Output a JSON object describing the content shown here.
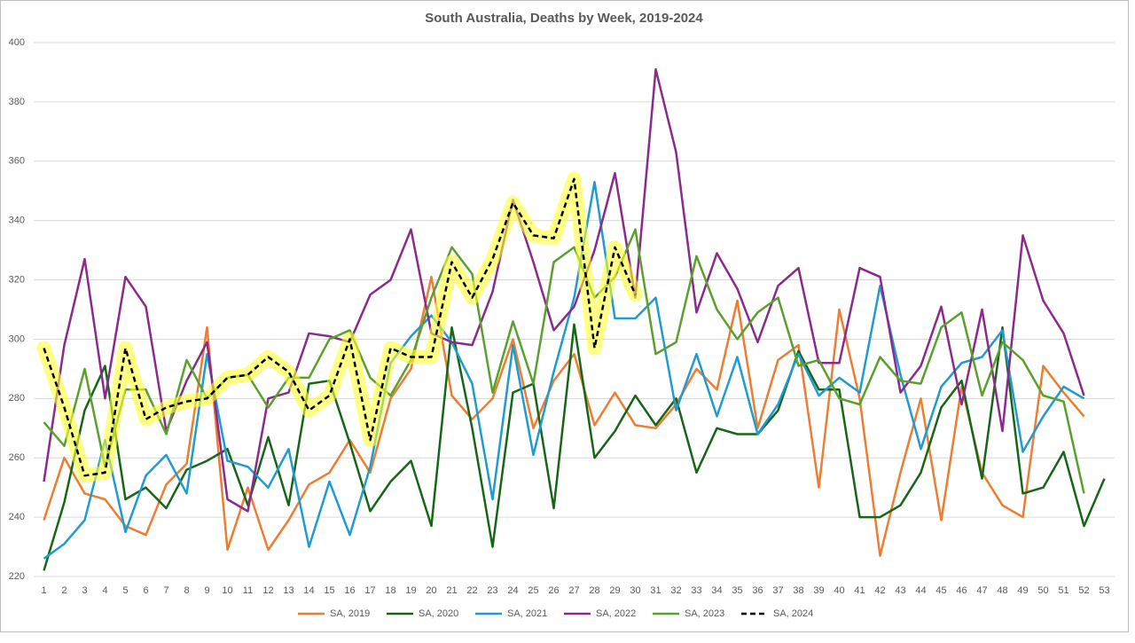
{
  "chart_data": {
    "type": "line",
    "title": "South Australia, Deaths by Week, 2019-2024",
    "categories": [
      1,
      2,
      3,
      4,
      5,
      6,
      7,
      8,
      9,
      10,
      11,
      12,
      13,
      14,
      15,
      16,
      17,
      18,
      19,
      20,
      21,
      22,
      23,
      24,
      25,
      26,
      27,
      28,
      29,
      30,
      31,
      32,
      33,
      34,
      35,
      36,
      37,
      38,
      39,
      40,
      41,
      42,
      43,
      44,
      45,
      46,
      47,
      48,
      49,
      50,
      51,
      52,
      53
    ],
    "ylim": [
      220,
      400
    ],
    "yticks": [
      220,
      240,
      260,
      280,
      300,
      320,
      340,
      360,
      380,
      400
    ],
    "grid": true,
    "legend": "bottom",
    "series": [
      {
        "name": "SA, 2019",
        "color": "#ed7d31",
        "values": [
          239,
          260,
          248,
          246,
          237,
          234,
          251,
          258,
          304,
          229,
          250,
          229,
          239,
          251,
          255,
          266,
          255,
          280,
          290,
          321,
          281,
          273,
          280,
          300,
          270,
          286,
          295,
          271,
          282,
          271,
          270,
          278,
          290,
          283,
          313,
          270,
          293,
          298,
          250,
          310,
          280,
          227,
          255,
          280,
          239,
          284,
          255,
          244,
          240,
          291,
          282,
          274,
          null
        ]
      },
      {
        "name": "SA, 2020",
        "color": "#176617",
        "values": [
          222,
          245,
          276,
          291,
          246,
          250,
          243,
          256,
          259,
          263,
          244,
          267,
          244,
          285,
          286,
          265,
          242,
          252,
          259,
          237,
          304,
          270,
          230,
          282,
          285,
          243,
          305,
          260,
          269,
          281,
          271,
          280,
          255,
          270,
          268,
          268,
          276,
          296,
          283,
          283,
          240,
          240,
          244,
          255,
          277,
          286,
          253,
          304,
          248,
          250,
          262,
          237,
          253
        ]
      },
      {
        "name": "SA, 2021",
        "color": "#1f9bd1",
        "values": [
          226,
          231,
          239,
          266,
          235,
          254,
          261,
          248,
          295,
          259,
          257,
          250,
          263,
          230,
          252,
          234,
          257,
          292,
          301,
          308,
          299,
          285,
          246,
          298,
          261,
          289,
          314,
          353,
          307,
          307,
          314,
          276,
          295,
          274,
          294,
          268,
          278,
          295,
          281,
          287,
          282,
          318,
          288,
          263,
          284,
          292,
          294,
          303,
          262,
          274,
          284,
          280,
          null
        ]
      },
      {
        "name": "SA, 2022",
        "color": "#8b2a8b",
        "values": [
          252,
          298,
          327,
          280,
          321,
          311,
          269,
          286,
          299,
          246,
          242,
          280,
          282,
          302,
          301,
          299,
          315,
          320,
          337,
          302,
          299,
          298,
          316,
          347,
          326,
          303,
          311,
          330,
          356,
          314,
          391,
          363,
          309,
          329,
          317,
          299,
          318,
          324,
          292,
          292,
          324,
          321,
          282,
          291,
          311,
          278,
          310,
          269,
          335,
          313,
          302,
          281,
          null
        ]
      },
      {
        "name": "SA, 2023",
        "color": "#5aa02c",
        "values": [
          272,
          264,
          290,
          257,
          283,
          283,
          268,
          293,
          280,
          287,
          288,
          277,
          287,
          287,
          300,
          303,
          287,
          281,
          293,
          314,
          331,
          322,
          282,
          306,
          285,
          326,
          331,
          314,
          321,
          337,
          295,
          299,
          328,
          310,
          300,
          309,
          314,
          291,
          293,
          280,
          278,
          294,
          286,
          285,
          304,
          309,
          281,
          299,
          293,
          281,
          279,
          248,
          null
        ]
      },
      {
        "name": "SA, 2024",
        "color": "#000000",
        "dashed": true,
        "highlight": "#ffff33",
        "values": [
          297,
          277,
          254,
          255,
          297,
          273,
          277,
          279,
          280,
          287,
          288,
          294,
          289,
          276,
          281,
          300,
          266,
          297,
          294,
          294,
          326,
          314,
          327,
          346,
          335,
          334,
          354,
          297,
          331,
          315,
          null,
          null,
          null,
          null,
          null,
          null,
          null,
          null,
          null,
          null,
          null,
          null,
          null,
          null,
          null,
          null,
          null,
          null,
          null,
          null,
          null,
          null,
          null
        ]
      }
    ]
  }
}
